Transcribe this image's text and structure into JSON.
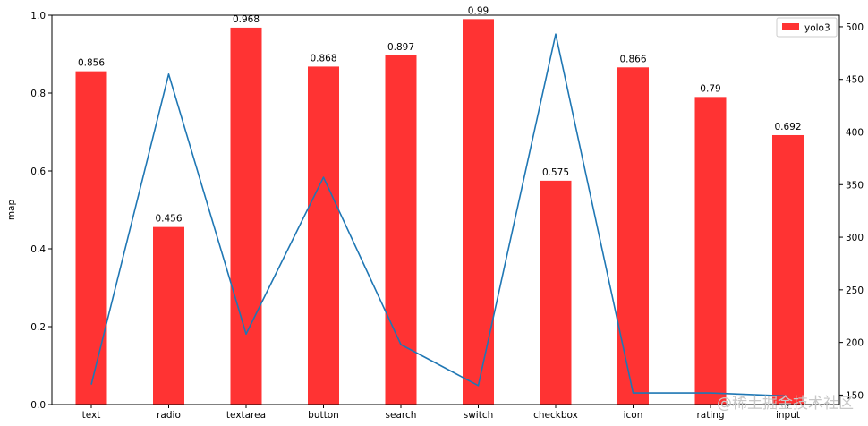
{
  "chart_data": {
    "type": "bar",
    "categories": [
      "text",
      "radio",
      "textarea",
      "button",
      "search",
      "switch",
      "checkbox",
      "icon",
      "rating",
      "input"
    ],
    "series": [
      {
        "name": "yolo3",
        "type": "bar",
        "axis": "left",
        "color": "#ff3333",
        "values": [
          0.856,
          0.456,
          0.968,
          0.868,
          0.897,
          0.99,
          0.575,
          0.866,
          0.79,
          0.692
        ],
        "labels": [
          "0.856",
          "0.456",
          "0.968",
          "0.868",
          "0.897",
          "0.99",
          "0.575",
          "0.866",
          "0.79",
          "0.692"
        ]
      },
      {
        "type": "line",
        "axis": "right",
        "color": "#1f77b4",
        "values": [
          160,
          455,
          208,
          357,
          198,
          159,
          493,
          152,
          152,
          149
        ]
      }
    ],
    "ylabel": "map",
    "ylim": [
      0,
      1.0
    ],
    "yticks": [
      "0.0",
      "0.2",
      "0.4",
      "0.6",
      "0.8",
      "1.0"
    ],
    "y2lim": [
      141,
      511
    ],
    "y2ticks": [
      "150",
      "200",
      "250",
      "300",
      "350",
      "400",
      "450",
      "500"
    ],
    "legend": {
      "position": "top-right",
      "entries": [
        "yolo3"
      ]
    },
    "grid": false
  },
  "watermark": "@稀土掘金技术社区"
}
